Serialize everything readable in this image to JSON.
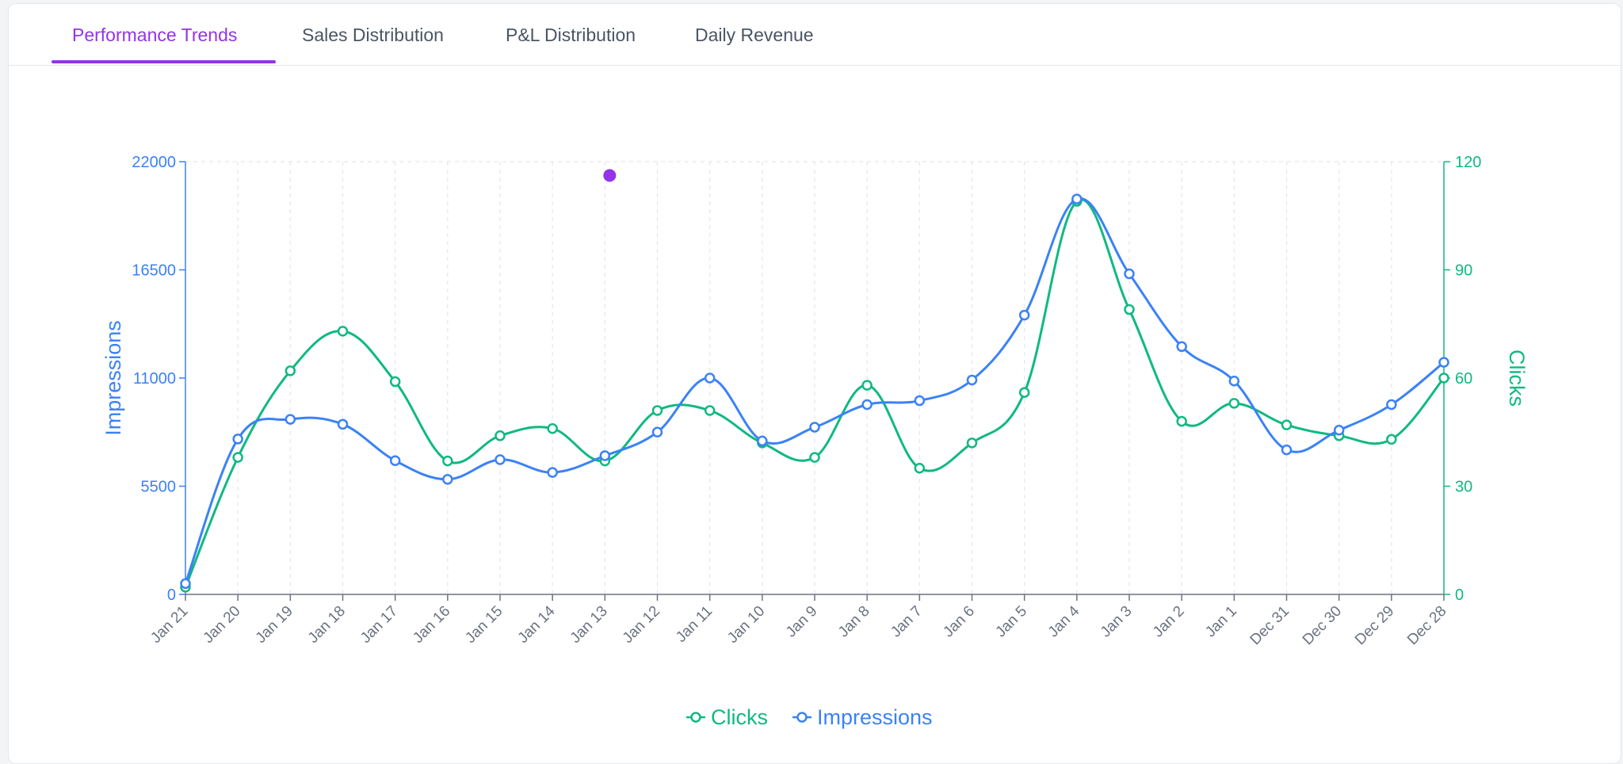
{
  "tabs": [
    {
      "label": "Performance Trends",
      "active": true
    },
    {
      "label": "Sales Distribution",
      "active": false
    },
    {
      "label": "P&L Distribution",
      "active": false
    },
    {
      "label": "Daily Revenue",
      "active": false
    }
  ],
  "colors": {
    "accent": "#9333ea",
    "impressions": "#3b82f6",
    "clicks": "#10b981",
    "axis_text": "#6b7280",
    "grid": "#e5e7eb"
  },
  "chart_data": {
    "type": "line",
    "categories": [
      "Jan 21",
      "Jan 20",
      "Jan 19",
      "Jan 18",
      "Jan 17",
      "Jan 16",
      "Jan 15",
      "Jan 14",
      "Jan 13",
      "Jan 12",
      "Jan 11",
      "Jan 10",
      "Jan 9",
      "Jan 8",
      "Jan 7",
      "Jan 6",
      "Jan 5",
      "Jan 4",
      "Jan 3",
      "Jan 2",
      "Jan 1",
      "Dec 31",
      "Dec 30",
      "Dec 29",
      "Dec 28"
    ],
    "series": [
      {
        "name": "Impressions",
        "axis": "left",
        "color": "#3b82f6",
        "values": [
          550,
          7900,
          8900,
          8650,
          6800,
          5850,
          6850,
          6200,
          7050,
          8250,
          11000,
          7800,
          8500,
          9650,
          9850,
          10900,
          14200,
          20100,
          16300,
          12600,
          10850,
          7350,
          8350,
          9650,
          11800
        ]
      },
      {
        "name": "Clicks",
        "axis": "right",
        "color": "#10b981",
        "values": [
          2,
          38,
          62,
          73,
          59,
          37,
          44,
          46,
          37,
          51,
          51,
          42,
          38,
          58,
          35,
          42,
          56,
          109,
          79,
          48,
          53,
          47,
          44,
          43,
          60
        ]
      }
    ],
    "y_left": {
      "label": "Impressions",
      "ticks": [
        0,
        5500,
        11000,
        16500,
        22000
      ],
      "range": [
        0,
        22000
      ]
    },
    "y_right": {
      "label": "Clicks",
      "ticks": [
        0,
        30,
        60,
        90,
        120
      ],
      "range": [
        0,
        120
      ]
    },
    "grid": "vertical dashed",
    "legend": {
      "placement": "bottom-center",
      "items": [
        "Clicks",
        "Impressions"
      ]
    },
    "highlight_marker": {
      "category": "Jan 13",
      "value": 21300,
      "color": "#9333ea"
    }
  }
}
